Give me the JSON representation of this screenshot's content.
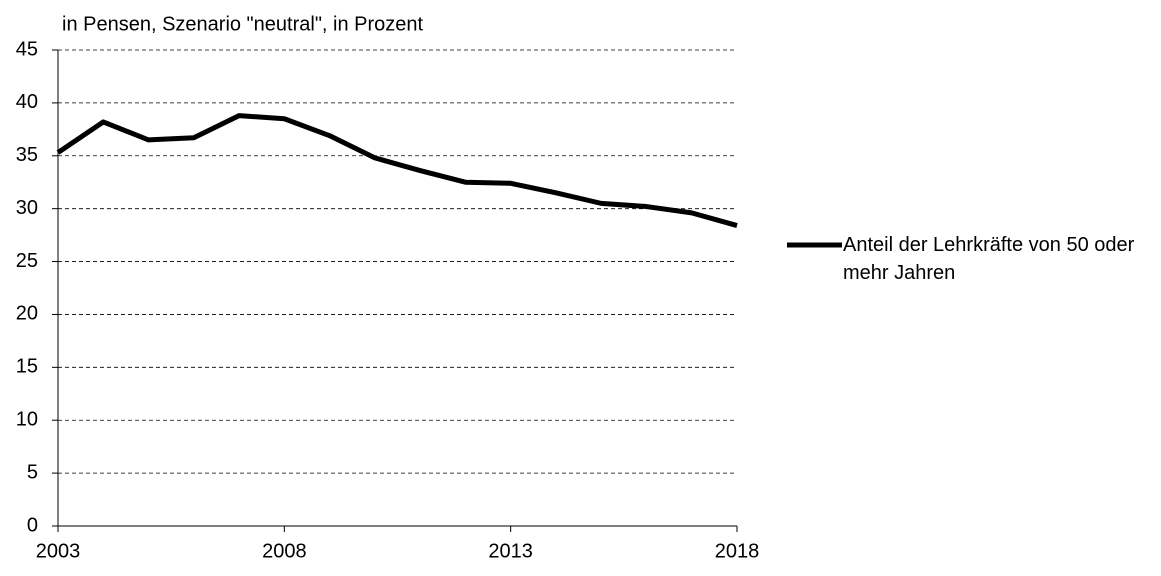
{
  "chart_data": {
    "type": "line",
    "title": "in Pensen, Szenario \"neutral\", in Prozent",
    "x": [
      2003,
      2004,
      2005,
      2006,
      2007,
      2008,
      2009,
      2010,
      2011,
      2012,
      2013,
      2014,
      2015,
      2016,
      2017,
      2018
    ],
    "series": [
      {
        "name": "Anteil der Lehrkräfte von 50 oder mehr Jahren",
        "color": "#000000",
        "values": [
          35.3,
          38.2,
          36.5,
          36.7,
          38.8,
          38.5,
          36.9,
          34.8,
          33.6,
          32.5,
          32.4,
          31.5,
          30.5,
          30.2,
          29.6,
          28.4
        ]
      }
    ],
    "xlim": [
      2003,
      2018
    ],
    "xticks": [
      2003,
      2008,
      2013,
      2018
    ],
    "ylim": [
      0,
      45
    ],
    "yticks": [
      0,
      5,
      10,
      15,
      20,
      25,
      30,
      35,
      40,
      45
    ],
    "grid": true,
    "legend": "right"
  }
}
